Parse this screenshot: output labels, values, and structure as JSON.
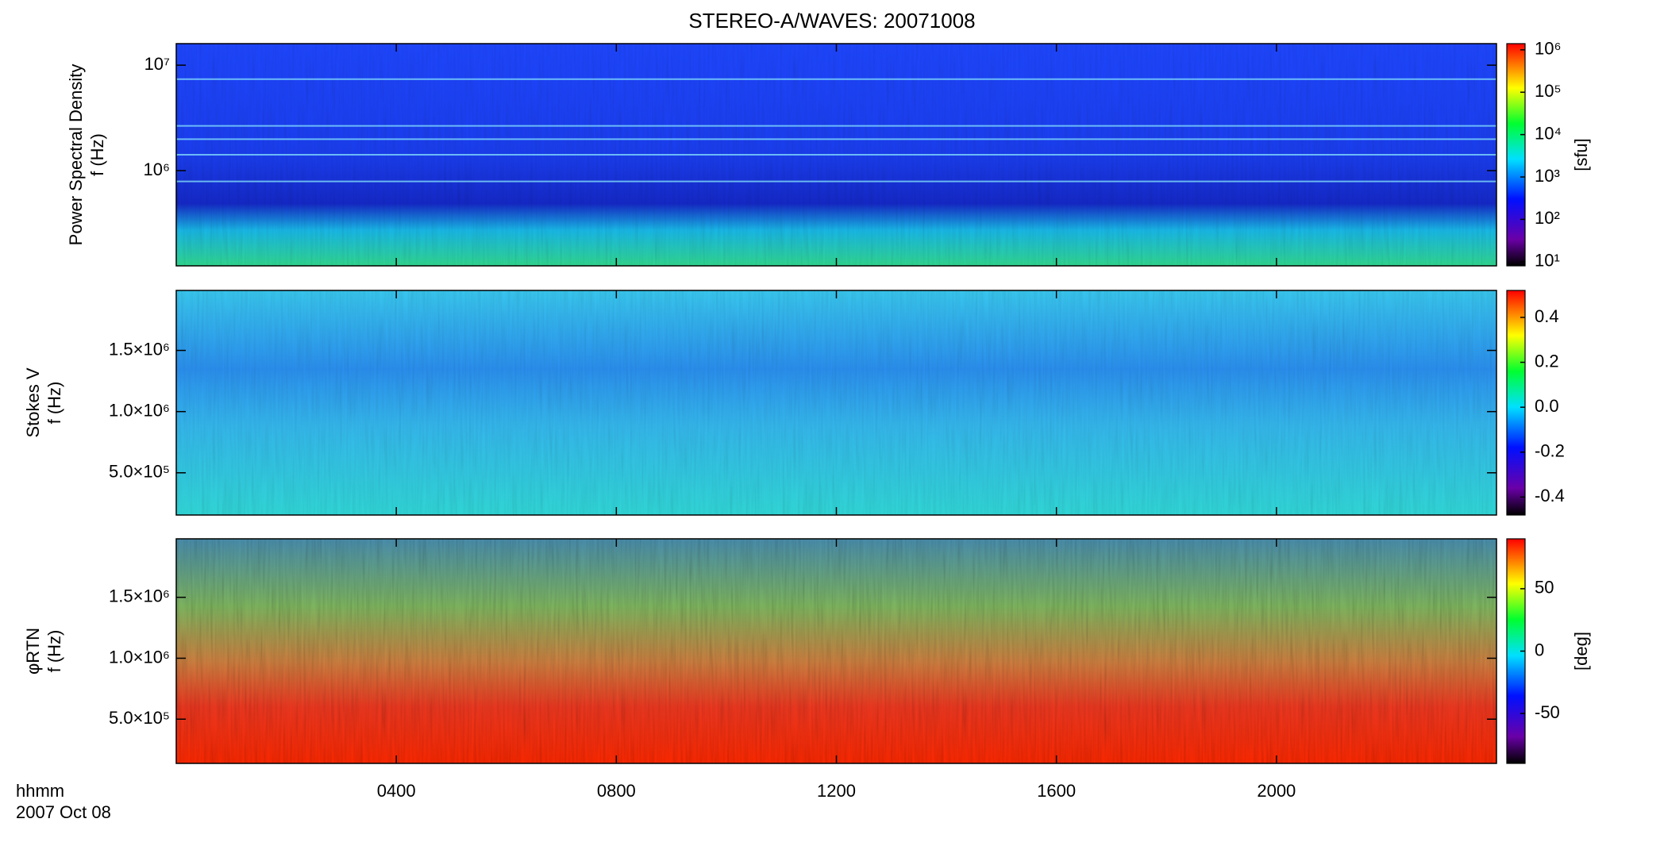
{
  "chart_data": [
    {
      "type": "heatmap",
      "title": "STEREO-A/WAVES: 20071008",
      "ylabel": [
        "Power Spectral Density",
        "f (Hz)"
      ],
      "log_y": true,
      "ylim": [
        125000,
        16000000
      ],
      "yticks": [
        {
          "value": 1000000,
          "label": "10⁶"
        },
        {
          "value": 10000000,
          "label": "10⁷"
        }
      ],
      "colorbar": {
        "log": true,
        "lim": [
          8,
          1400000
        ],
        "label": "[sfu]",
        "ticks": [
          {
            "value": 10,
            "label": "10¹"
          },
          {
            "value": 100,
            "label": "10²"
          },
          {
            "value": 1000,
            "label": "10³"
          },
          {
            "value": 10000,
            "label": "10⁴"
          },
          {
            "value": 100000,
            "label": "10⁵"
          },
          {
            "value": 1000000,
            "label": "10⁶"
          }
        ]
      }
    },
    {
      "type": "heatmap",
      "ylabel": [
        "Stokes V",
        "f (Hz)"
      ],
      "log_y": false,
      "ylim": [
        155000,
        1990000
      ],
      "yticks": [
        {
          "value": 500000,
          "label": "5.0×10⁵"
        },
        {
          "value": 1000000,
          "label": "1.0×10⁶"
        },
        {
          "value": 1500000,
          "label": "1.5×10⁶"
        }
      ],
      "colorbar": {
        "log": false,
        "lim": [
          -0.48,
          0.52
        ],
        "ticks": [
          -0.4,
          -0.2,
          {
            "value": 0,
            "label": "0.0"
          },
          0.2,
          0.4
        ]
      }
    },
    {
      "type": "heatmap",
      "ylabel": [
        "φRTN",
        "f (Hz)"
      ],
      "log_y": false,
      "ylim": [
        137000,
        1980000
      ],
      "yticks": [
        {
          "value": 500000,
          "label": "5.0×10⁵"
        },
        {
          "value": 1000000,
          "label": "1.0×10⁶"
        },
        {
          "value": 1500000,
          "label": "1.5×10⁶"
        }
      ],
      "colorbar": {
        "log": false,
        "lim": [
          -90,
          90
        ],
        "label": "[deg]",
        "ticks": [
          -50,
          0,
          50
        ]
      },
      "xlim": [
        0,
        24
      ],
      "xticks": [
        {
          "value": 4,
          "label": "0400"
        },
        {
          "value": 8,
          "label": "0800"
        },
        {
          "value": 12,
          "label": "1200"
        },
        {
          "value": 16,
          "label": "1600"
        },
        {
          "value": 20,
          "label": "2000"
        }
      ],
      "xlabel": "hhmm",
      "date": "2007 Oct 08"
    }
  ]
}
